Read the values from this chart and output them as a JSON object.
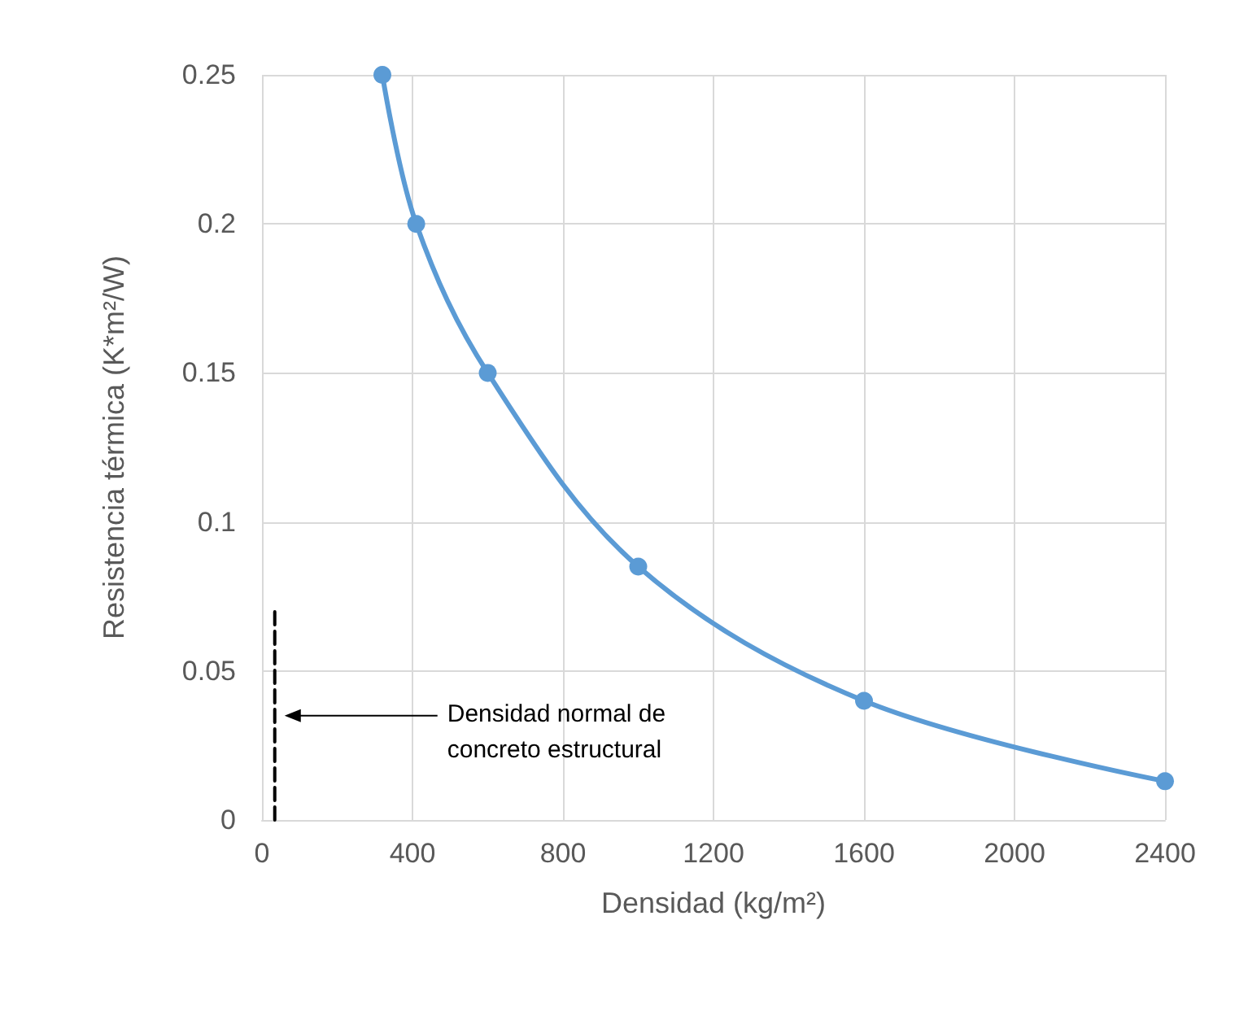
{
  "chart_data": {
    "type": "line",
    "xlabel": "Densidad (kg/m²)",
    "ylabel": "Resistencia térmica (K*m²/W)",
    "x": [
      320,
      410,
      600,
      1000,
      1600,
      2400
    ],
    "series": [
      {
        "color": "#5b9bd5",
        "values": [
          0.25,
          0.2,
          0.15,
          0.085,
          0.04,
          0.013
        ],
        "marker": "circle",
        "line_style": "solid"
      },
      {
        "color": "#000000",
        "x": [
          34,
          34
        ],
        "values": [
          0,
          0.07
        ],
        "marker": "none",
        "line_style": "dashed"
      }
    ],
    "annotations": [
      "Densidad normal de\nconcreto estructural"
    ],
    "xlim": [
      0,
      2400
    ],
    "xticks": [
      0,
      400,
      800,
      1200,
      1600,
      2000,
      2400
    ],
    "ylim": [
      0,
      0.25
    ],
    "yticks": [
      0,
      0.05,
      0.1,
      0.15,
      0.2,
      0.25
    ],
    "grid": true
  }
}
